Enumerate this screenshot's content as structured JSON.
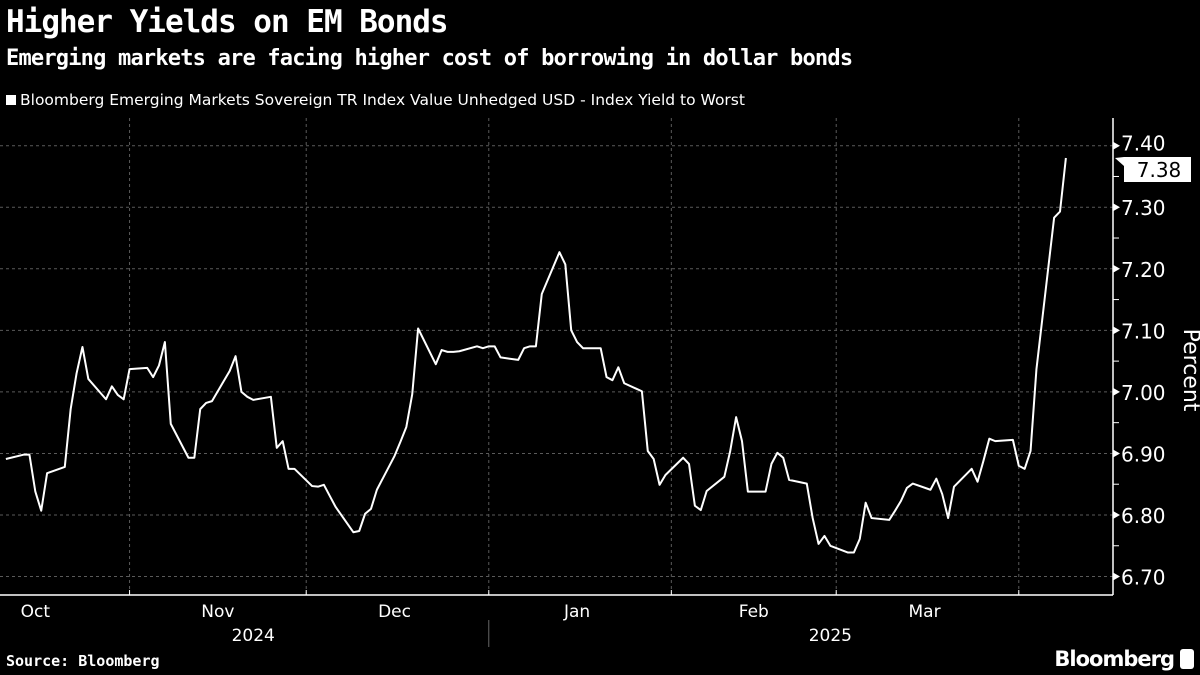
{
  "header": {
    "title": "Higher Yields on EM Bonds",
    "subtitle": "Emerging markets are facing higher cost of borrowing in dollar bonds"
  },
  "footer": {
    "source": "Source: Bloomberg",
    "logo": "Bloomberg"
  },
  "colors": {
    "background": "#000000",
    "line": "#ffffff",
    "grid": "#5a5a5a"
  },
  "chart_data": {
    "type": "line",
    "title": "Higher Yields on EM Bonds",
    "subtitle": "Emerging markets are facing higher cost of borrowing in dollar bonds",
    "ylabel": "Percent",
    "ylim": [
      6.67,
      7.445
    ],
    "xlim": [
      "2024-10-10",
      "2025-04-17"
    ],
    "yticks": [
      "6.70",
      "6.80",
      "6.90",
      "7.00",
      "7.10",
      "7.20",
      "7.30",
      "7.40"
    ],
    "xticks": [
      {
        "label": "Oct",
        "date": "2024-10-16"
      },
      {
        "label": "Nov",
        "date": "2024-11-16"
      },
      {
        "label": "Dec",
        "date": "2024-12-16"
      },
      {
        "label": "Jan",
        "date": "2025-01-16"
      },
      {
        "label": "Feb",
        "date": "2025-02-15"
      },
      {
        "label": "Mar",
        "date": "2025-03-16"
      }
    ],
    "month_boundaries": [
      "2024-11-01",
      "2024-12-01",
      "2025-01-01",
      "2025-02-01",
      "2025-03-01",
      "2025-04-01"
    ],
    "years": [
      {
        "label": "2024",
        "date": "2024-11-22"
      },
      {
        "label": "2025",
        "date": "2025-02-28"
      }
    ],
    "grid": true,
    "legend_position": "top-left",
    "last_value_label": "7.38",
    "series": [
      {
        "name": "Bloomberg Emerging Markets Sovereign TR Index Value Unhedged USD - Index Yield to Worst",
        "x": [
          "2024-10-11",
          "2024-10-14",
          "2024-10-15",
          "2024-10-16",
          "2024-10-17",
          "2024-10-18",
          "2024-10-21",
          "2024-10-22",
          "2024-10-23",
          "2024-10-24",
          "2024-10-25",
          "2024-10-28",
          "2024-10-29",
          "2024-10-30",
          "2024-10-31",
          "2024-11-01",
          "2024-11-04",
          "2024-11-05",
          "2024-11-06",
          "2024-11-07",
          "2024-11-08",
          "2024-11-11",
          "2024-11-12",
          "2024-11-13",
          "2024-11-14",
          "2024-11-15",
          "2024-11-18",
          "2024-11-19",
          "2024-11-20",
          "2024-11-21",
          "2024-11-22",
          "2024-11-25",
          "2024-11-26",
          "2024-11-27",
          "2024-11-28",
          "2024-11-29",
          "2024-12-02",
          "2024-12-03",
          "2024-12-04",
          "2024-12-05",
          "2024-12-06",
          "2024-12-09",
          "2024-12-10",
          "2024-12-11",
          "2024-12-12",
          "2024-12-13",
          "2024-12-16",
          "2024-12-17",
          "2024-12-18",
          "2024-12-19",
          "2024-12-20",
          "2024-12-23",
          "2024-12-24",
          "2024-12-25",
          "2024-12-26",
          "2024-12-27",
          "2024-12-30",
          "2024-12-31",
          "2025-01-01",
          "2025-01-02",
          "2025-01-03",
          "2025-01-06",
          "2025-01-07",
          "2025-01-08",
          "2025-01-09",
          "2025-01-10",
          "2025-01-13",
          "2025-01-14",
          "2025-01-15",
          "2025-01-16",
          "2025-01-17",
          "2025-01-20",
          "2025-01-21",
          "2025-01-22",
          "2025-01-23",
          "2025-01-24",
          "2025-01-27",
          "2025-01-28",
          "2025-01-29",
          "2025-01-30",
          "2025-01-31",
          "2025-02-03",
          "2025-02-04",
          "2025-02-05",
          "2025-02-06",
          "2025-02-07",
          "2025-02-10",
          "2025-02-11",
          "2025-02-12",
          "2025-02-13",
          "2025-02-14",
          "2025-02-17",
          "2025-02-18",
          "2025-02-19",
          "2025-02-20",
          "2025-02-21",
          "2025-02-24",
          "2025-02-25",
          "2025-02-26",
          "2025-02-27",
          "2025-02-28",
          "2025-03-03",
          "2025-03-04",
          "2025-03-05",
          "2025-03-06",
          "2025-03-07",
          "2025-03-10",
          "2025-03-11",
          "2025-03-12",
          "2025-03-13",
          "2025-03-14",
          "2025-03-17",
          "2025-03-18",
          "2025-03-19",
          "2025-03-20",
          "2025-03-21",
          "2025-03-24",
          "2025-03-25",
          "2025-03-26",
          "2025-03-27",
          "2025-03-28",
          "2025-03-31",
          "2025-04-01",
          "2025-04-02",
          "2025-04-03",
          "2025-04-04",
          "2025-04-07",
          "2025-04-08",
          "2025-04-09"
        ],
        "values": [
          6.891,
          6.898,
          6.898,
          6.838,
          6.807,
          6.868,
          6.878,
          6.972,
          7.03,
          7.073,
          7.021,
          6.988,
          7.009,
          6.995,
          6.988,
          7.037,
          7.039,
          7.024,
          7.043,
          7.081,
          6.948,
          6.893,
          6.893,
          6.972,
          6.982,
          6.985,
          7.034,
          7.058,
          7.0,
          6.992,
          6.987,
          6.992,
          6.909,
          6.92,
          6.875,
          6.875,
          6.847,
          6.846,
          6.849,
          6.831,
          6.813,
          6.772,
          6.774,
          6.802,
          6.81,
          6.841,
          6.896,
          6.919,
          6.943,
          6.996,
          7.103,
          7.045,
          7.068,
          7.065,
          7.065,
          7.066,
          7.074,
          7.071,
          7.074,
          7.074,
          7.056,
          7.052,
          7.071,
          7.074,
          7.074,
          7.159,
          7.227,
          7.207,
          7.1,
          7.081,
          7.071,
          7.071,
          7.024,
          7.019,
          7.04,
          7.014,
          7.001,
          6.904,
          6.891,
          6.849,
          6.865,
          6.893,
          6.883,
          6.815,
          6.808,
          6.839,
          6.862,
          6.904,
          6.959,
          6.92,
          6.838,
          6.838,
          6.883,
          6.901,
          6.893,
          6.857,
          6.851,
          6.795,
          6.753,
          6.766,
          6.75,
          6.739,
          6.739,
          6.761,
          6.82,
          6.795,
          6.792,
          6.807,
          6.823,
          6.844,
          6.851,
          6.841,
          6.859,
          6.834,
          6.795,
          6.846,
          6.875,
          6.854,
          6.888,
          6.924,
          6.92,
          6.922,
          6.88,
          6.875,
          6.904,
          7.037,
          7.283,
          7.293,
          7.38
        ]
      }
    ]
  }
}
